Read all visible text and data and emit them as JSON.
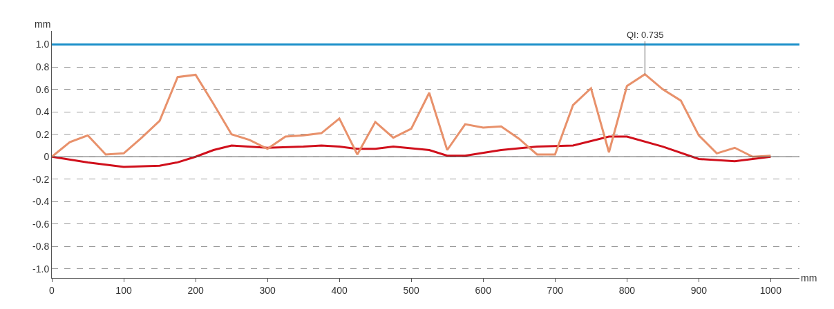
{
  "chart_data": {
    "type": "line",
    "xlabel": "mm",
    "ylabel": "mm",
    "xlim": [
      0,
      1040
    ],
    "xticks": [
      0,
      100,
      200,
      300,
      400,
      500,
      600,
      700,
      800,
      900,
      1000
    ],
    "ylim": [
      -1.08,
      1.12
    ],
    "yticks": [
      {
        "value": 1.0,
        "label": "1.0"
      },
      0.8,
      0.6,
      0.4,
      0.2,
      0,
      -0.2,
      -0.4,
      -0.6,
      -0.8,
      {
        "value": -1.0,
        "label": "-1.0"
      }
    ],
    "grid": "y",
    "marker": "none",
    "line_style": "solid",
    "series": [
      {
        "color": "#d0101c",
        "x": [
          0,
          50,
          100,
          150,
          175,
          200,
          225,
          250,
          300,
          350,
          375,
          400,
          425,
          450,
          475,
          525,
          550,
          575,
          625,
          675,
          725,
          775,
          800,
          850,
          900,
          950,
          1000
        ],
        "values": [
          0,
          -0.05,
          -0.09,
          -0.08,
          -0.05,
          0,
          0.06,
          0.1,
          0.08,
          0.09,
          0.1,
          0.09,
          0.07,
          0.07,
          0.09,
          0.06,
          0.01,
          0.01,
          0.06,
          0.09,
          0.1,
          0.18,
          0.18,
          0.09,
          -0.02,
          -0.04,
          0
        ]
      },
      {
        "color": "#e8916b",
        "x": [
          0,
          25,
          50,
          75,
          100,
          125,
          150,
          175,
          200,
          225,
          250,
          275,
          300,
          325,
          350,
          375,
          400,
          425,
          450,
          475,
          500,
          525,
          550,
          575,
          600,
          625,
          650,
          675,
          700,
          725,
          750,
          775,
          800,
          825,
          850,
          875,
          900,
          925,
          950,
          975,
          1000
        ],
        "values": [
          0,
          0.13,
          0.19,
          0.02,
          0.03,
          0.17,
          0.32,
          0.71,
          0.73,
          0.47,
          0.2,
          0.15,
          0.07,
          0.18,
          0.19,
          0.21,
          0.34,
          0.02,
          0.31,
          0.17,
          0.25,
          0.57,
          0.06,
          0.29,
          0.26,
          0.27,
          0.16,
          0.02,
          0.02,
          0.46,
          0.61,
          0.04,
          0.63,
          0.735,
          0.6,
          0.5,
          0.19,
          0.03,
          0.08,
          0,
          0.01
        ]
      }
    ],
    "ref_lines": [
      {
        "axis": "y",
        "value": 1.0,
        "color": "#1a8fc9",
        "line_style": "solid"
      },
      {
        "axis": "y",
        "value": 0,
        "color": "#555555",
        "line_style": "solid"
      }
    ],
    "annotations": [
      {
        "text": "QI: 0.735",
        "x": 825,
        "y": 0.735
      }
    ]
  }
}
